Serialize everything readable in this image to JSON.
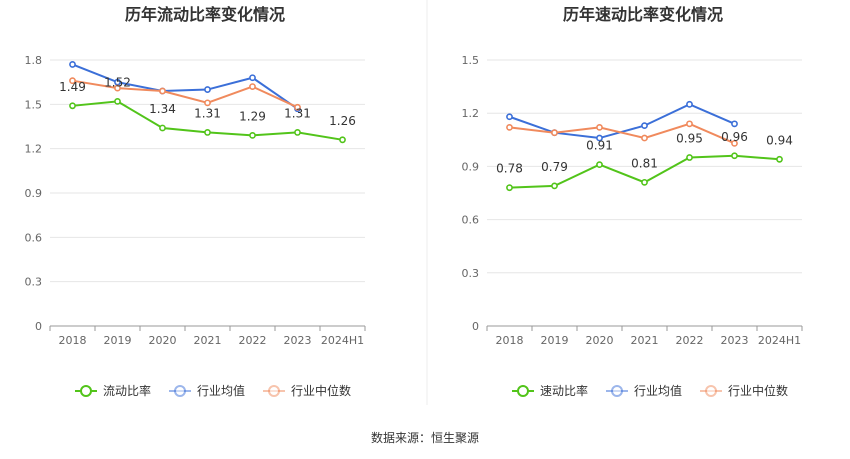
{
  "source": "数据来源：恒生聚源",
  "chart_data": [
    {
      "type": "line",
      "title": "历年流动比率变化情况",
      "categories": [
        "2018",
        "2019",
        "2020",
        "2021",
        "2022",
        "2023",
        "2024H1"
      ],
      "ylim": [
        0,
        1.8
      ],
      "yticks": [
        "0",
        "0.3",
        "0.6",
        "0.9",
        "1.2",
        "1.5",
        "1.8"
      ],
      "grid": true,
      "legend_position": "bottom",
      "series": [
        {
          "name": "流动比率",
          "color": "#52c41a",
          "values": [
            1.49,
            1.52,
            1.34,
            1.31,
            1.29,
            1.31,
            1.26
          ],
          "labels": [
            "1.49",
            "1.52",
            "1.34",
            "1.31",
            "1.29",
            "1.31",
            "1.26"
          ]
        },
        {
          "name": "行业均值",
          "color": "#3b6fd8",
          "values": [
            1.77,
            1.65,
            1.59,
            1.6,
            1.68,
            1.47,
            null
          ]
        },
        {
          "name": "行业中位数",
          "color": "#f08a5d",
          "values": [
            1.66,
            1.61,
            1.59,
            1.51,
            1.62,
            1.48,
            null
          ]
        }
      ]
    },
    {
      "type": "line",
      "title": "历年速动比率变化情况",
      "categories": [
        "2018",
        "2019",
        "2020",
        "2021",
        "2022",
        "2023",
        "2024H1"
      ],
      "ylim": [
        0,
        1.5
      ],
      "yticks": [
        "0",
        "0.3",
        "0.6",
        "0.9",
        "1.2",
        "1.5"
      ],
      "grid": true,
      "legend_position": "bottom",
      "series": [
        {
          "name": "速动比率",
          "color": "#52c41a",
          "values": [
            0.78,
            0.79,
            0.91,
            0.81,
            0.95,
            0.96,
            0.94
          ],
          "labels": [
            "0.78",
            "0.79",
            "0.91",
            "0.81",
            "0.95",
            "0.96",
            "0.94"
          ]
        },
        {
          "name": "行业均值",
          "color": "#3b6fd8",
          "values": [
            1.18,
            1.09,
            1.06,
            1.13,
            1.25,
            1.14,
            null
          ]
        },
        {
          "name": "行业中位数",
          "color": "#f08a5d",
          "values": [
            1.12,
            1.09,
            1.12,
            1.06,
            1.14,
            1.03,
            null
          ]
        }
      ]
    }
  ]
}
